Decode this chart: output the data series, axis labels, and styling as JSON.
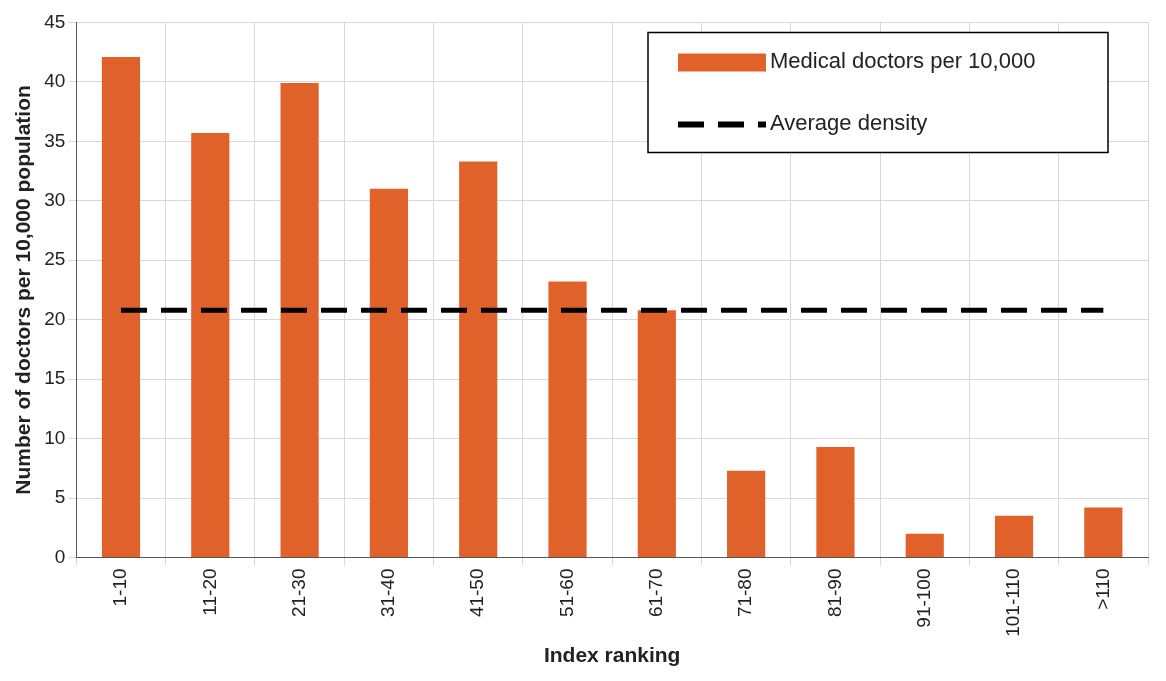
{
  "chart_data": {
    "type": "bar",
    "xlabel": "Index ranking",
    "ylabel": "Number of doctors per 10,000 population",
    "categories": [
      "1-10",
      "11-20",
      "21-30",
      "31-40",
      "41-50",
      "51-60",
      "61-70",
      "71-80",
      "81-90",
      "91-100",
      "101-110",
      ">110"
    ],
    "series": [
      {
        "name": "Medical doctors per 10,000",
        "color": "#e0622a",
        "values": [
          42.1,
          35.7,
          39.9,
          31.0,
          33.3,
          23.2,
          20.8,
          7.3,
          9.3,
          2.0,
          3.5,
          4.2
        ]
      }
    ],
    "ref_lines": [
      {
        "axis": "y",
        "value": 20.8,
        "label": "Average density",
        "color": "#000000",
        "line_style": "dashed"
      }
    ],
    "ylim": [
      0,
      45
    ],
    "yticks": [
      0,
      5,
      10,
      15,
      20,
      25,
      30,
      35,
      40,
      45
    ],
    "grid": true,
    "legend": "top right"
  }
}
